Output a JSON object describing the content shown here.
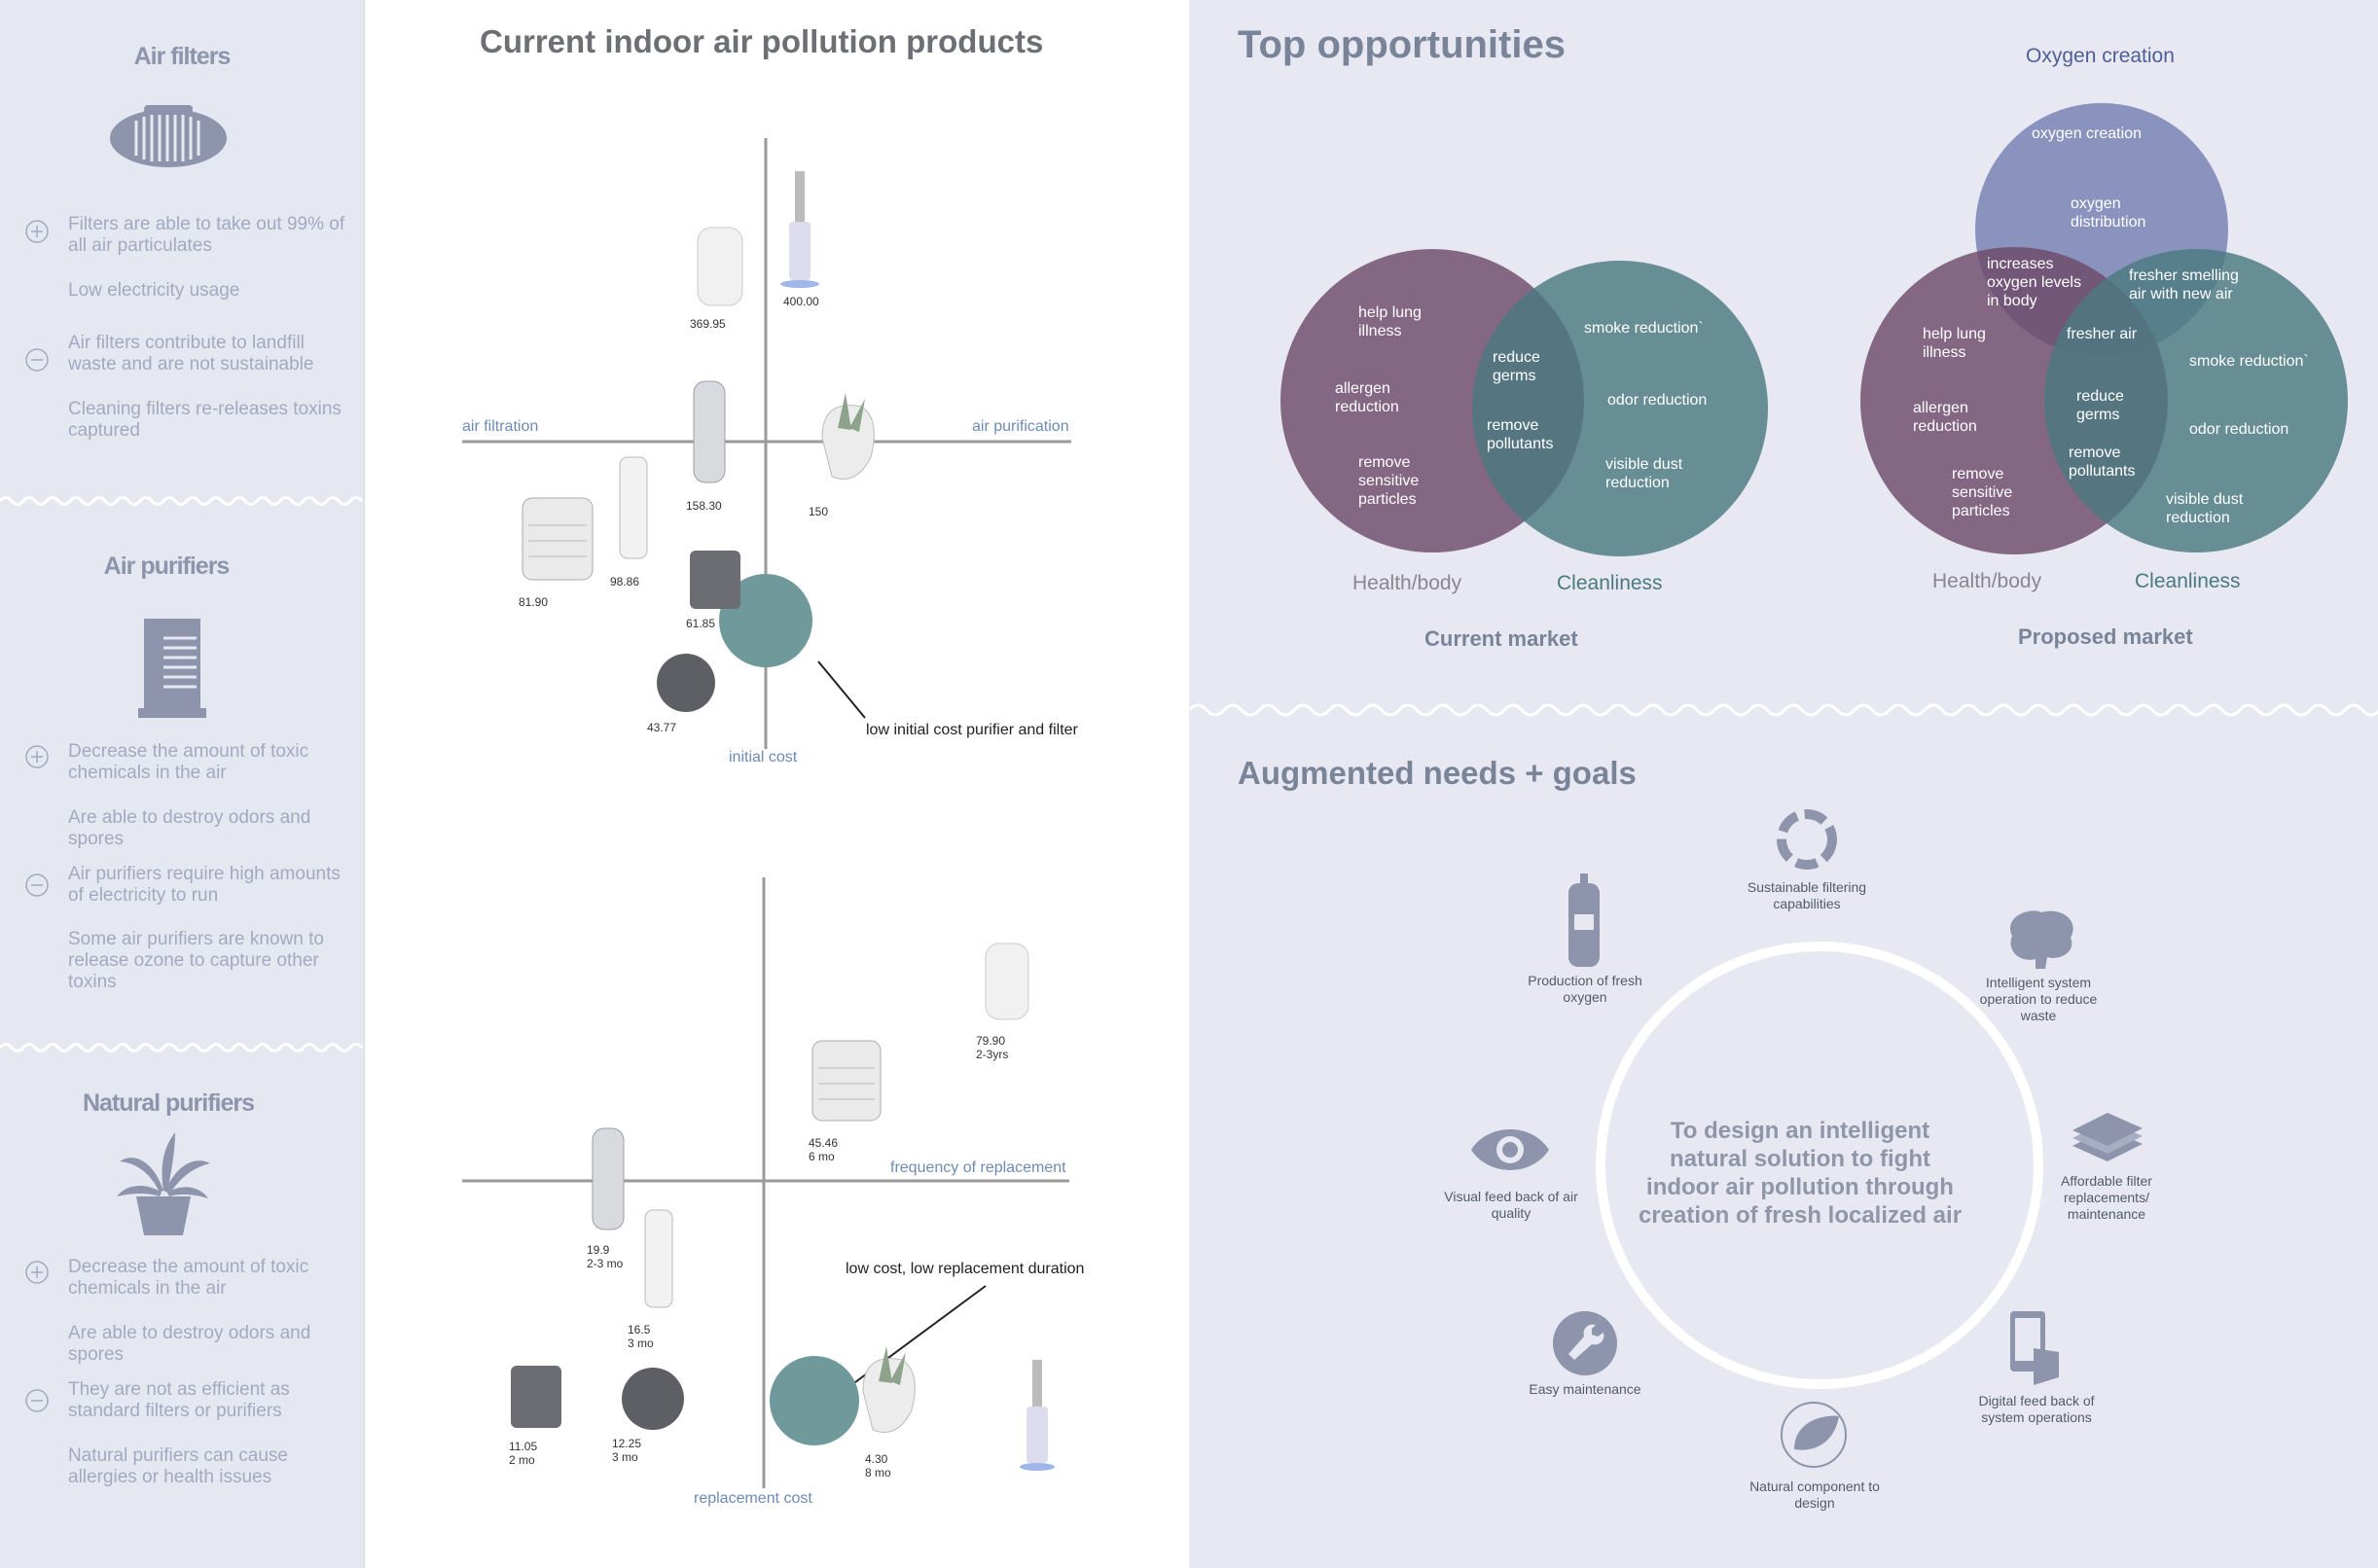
{
  "sidebar": {
    "sections": [
      {
        "title": "Air filters",
        "items": [
          "Filters are able to take out 99% of all air particulates",
          "Low electricity usage",
          "Air filters contribute to landfill waste and are not sustainable",
          "Cleaning filters re-releases toxins captured"
        ]
      },
      {
        "title": "Air purifiers",
        "items": [
          "Decrease the amount of toxic chemicals in the air",
          "Are able to destroy odors and spores",
          "Air purifiers require high amounts of electricity to run",
          "Some air purifiers are known to release ozone to capture other toxins"
        ]
      },
      {
        "title": "Natural purifiers",
        "items": [
          "Decrease the amount of toxic chemicals in the air",
          "Are able to destroy odors and spores",
          "They are not as efficient as standard filters or purifiers",
          "Natural purifiers can cause allergies or health issues"
        ]
      }
    ]
  },
  "middle": {
    "title": "Current indoor air pollution products",
    "chart1": {
      "x_left": "air filtration",
      "x_right": "air purification",
      "y_bottom": "initial cost",
      "callout": "low initial cost purifier and filter",
      "prices": [
        "369.95",
        "400.00",
        "158.30",
        "150",
        "81.90",
        "98.86",
        "61.85",
        "43.77"
      ]
    },
    "chart2": {
      "x_right": "frequency of replacement",
      "y_bottom": "replacement cost",
      "callout": "low cost, low replacement duration",
      "items": [
        {
          "cost": "79.90",
          "freq": "2-3yrs"
        },
        {
          "cost": "45.46",
          "freq": "6 mo"
        },
        {
          "cost": "19.9",
          "freq": "2-3 mo"
        },
        {
          "cost": "16.5",
          "freq": "3 mo"
        },
        {
          "cost": "11.05",
          "freq": "2 mo"
        },
        {
          "cost": "12.25",
          "freq": "3 mo"
        },
        {
          "cost": "4.30",
          "freq": "8 mo"
        }
      ]
    }
  },
  "right": {
    "title": "Top opportunities",
    "current": {
      "caption": "Current market",
      "left_label": "Health/body",
      "right_label": "Cleanliness",
      "health": [
        "help lung illness",
        "allergen reduction",
        "remove sensitive particles"
      ],
      "overlap": [
        "reduce germs",
        "remove pollutants"
      ],
      "clean": [
        "smoke reduction`",
        "odor reduction",
        "visible dust reduction"
      ]
    },
    "proposed": {
      "caption": "Proposed market",
      "top_label": "Oxygen creation",
      "left_label": "Health/body",
      "right_label": "Cleanliness",
      "oxygen": [
        "oxygen creation",
        "oxygen distribution"
      ],
      "oxy_health": "increases oxygen levels in body",
      "oxy_clean": "fresher smelling air with new air",
      "center": "fresher air",
      "health": [
        "help lung illness",
        "allergen reduction",
        "remove sensitive particles"
      ],
      "overlap": [
        "reduce germs",
        "remove pollutants"
      ],
      "clean": [
        "smoke reduction`",
        "odor reduction",
        "visible dust reduction"
      ]
    },
    "needs_title": "Augmented needs + goals",
    "goal": "To design an intelligent natural solution to fight indoor air pollution through creation of fresh localized air",
    "needs": [
      "Sustainable filtering capabilities",
      "Intelligent system operation to reduce waste",
      "Affordable filter replacements/ maintenance",
      "Digital feed back of system operations",
      "Natural component to design",
      "Easy maintenance",
      "Visual feed back of air quality",
      "Production of fresh oxygen"
    ],
    "colors": {
      "purple": "#6e4a6a",
      "teal": "#4a7a80",
      "blue": "#7580b2"
    }
  }
}
